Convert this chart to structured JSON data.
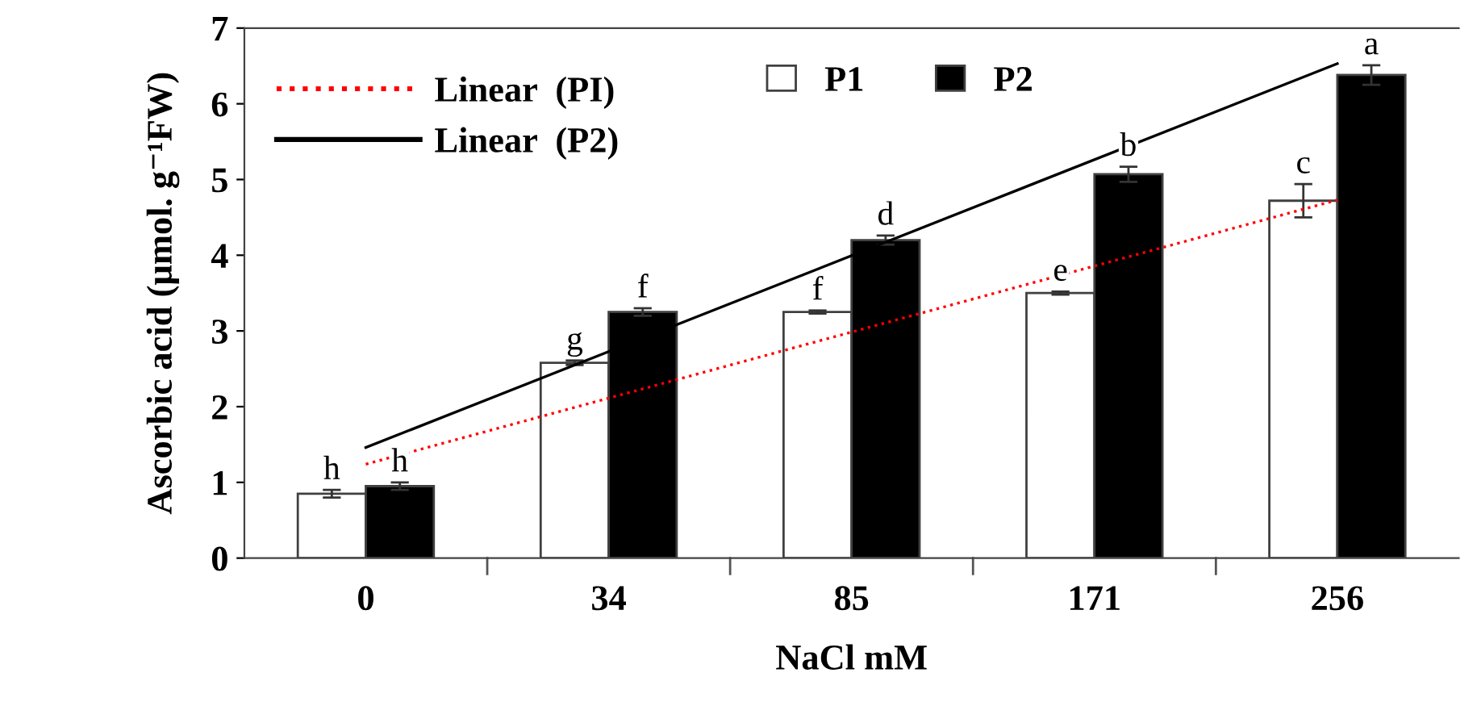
{
  "chart_data": {
    "type": "bar",
    "xlabel": "NaCl mM",
    "ylabel": "Ascorbic acid (µmol. g⁻¹FW)",
    "categories": [
      "0",
      "34",
      "85",
      "171",
      "256"
    ],
    "series": [
      {
        "name": "P1",
        "color": "#ffffff",
        "values": [
          0.85,
          2.58,
          3.25,
          3.5,
          4.72
        ],
        "errors": [
          0.05,
          0.03,
          0.02,
          0.02,
          0.22
        ],
        "value_labels": [
          "h",
          "g",
          "f",
          "e",
          "c"
        ]
      },
      {
        "name": "P2",
        "color": "#000000",
        "values": [
          0.95,
          3.25,
          4.2,
          5.07,
          6.38
        ],
        "errors": [
          0.05,
          0.05,
          0.06,
          0.1,
          0.13
        ],
        "value_labels": [
          "h",
          "f",
          "d",
          "b",
          "a"
        ]
      },
      {
        "name": "Linear  (PI)",
        "type": "line",
        "x": [
          "0",
          "256"
        ],
        "values": [
          1.24,
          4.73
        ],
        "color": "#ff0000",
        "line_style": "dotted"
      },
      {
        "name": "Linear  (P2)",
        "type": "line",
        "x": [
          "0",
          "256"
        ],
        "values": [
          1.46,
          6.53
        ],
        "color": "#000000",
        "line_style": "solid"
      }
    ],
    "ylim": [
      0,
      7
    ],
    "yticks": [
      0,
      1,
      2,
      3,
      4,
      5,
      6,
      7
    ],
    "grid": false,
    "legend": "top left"
  }
}
